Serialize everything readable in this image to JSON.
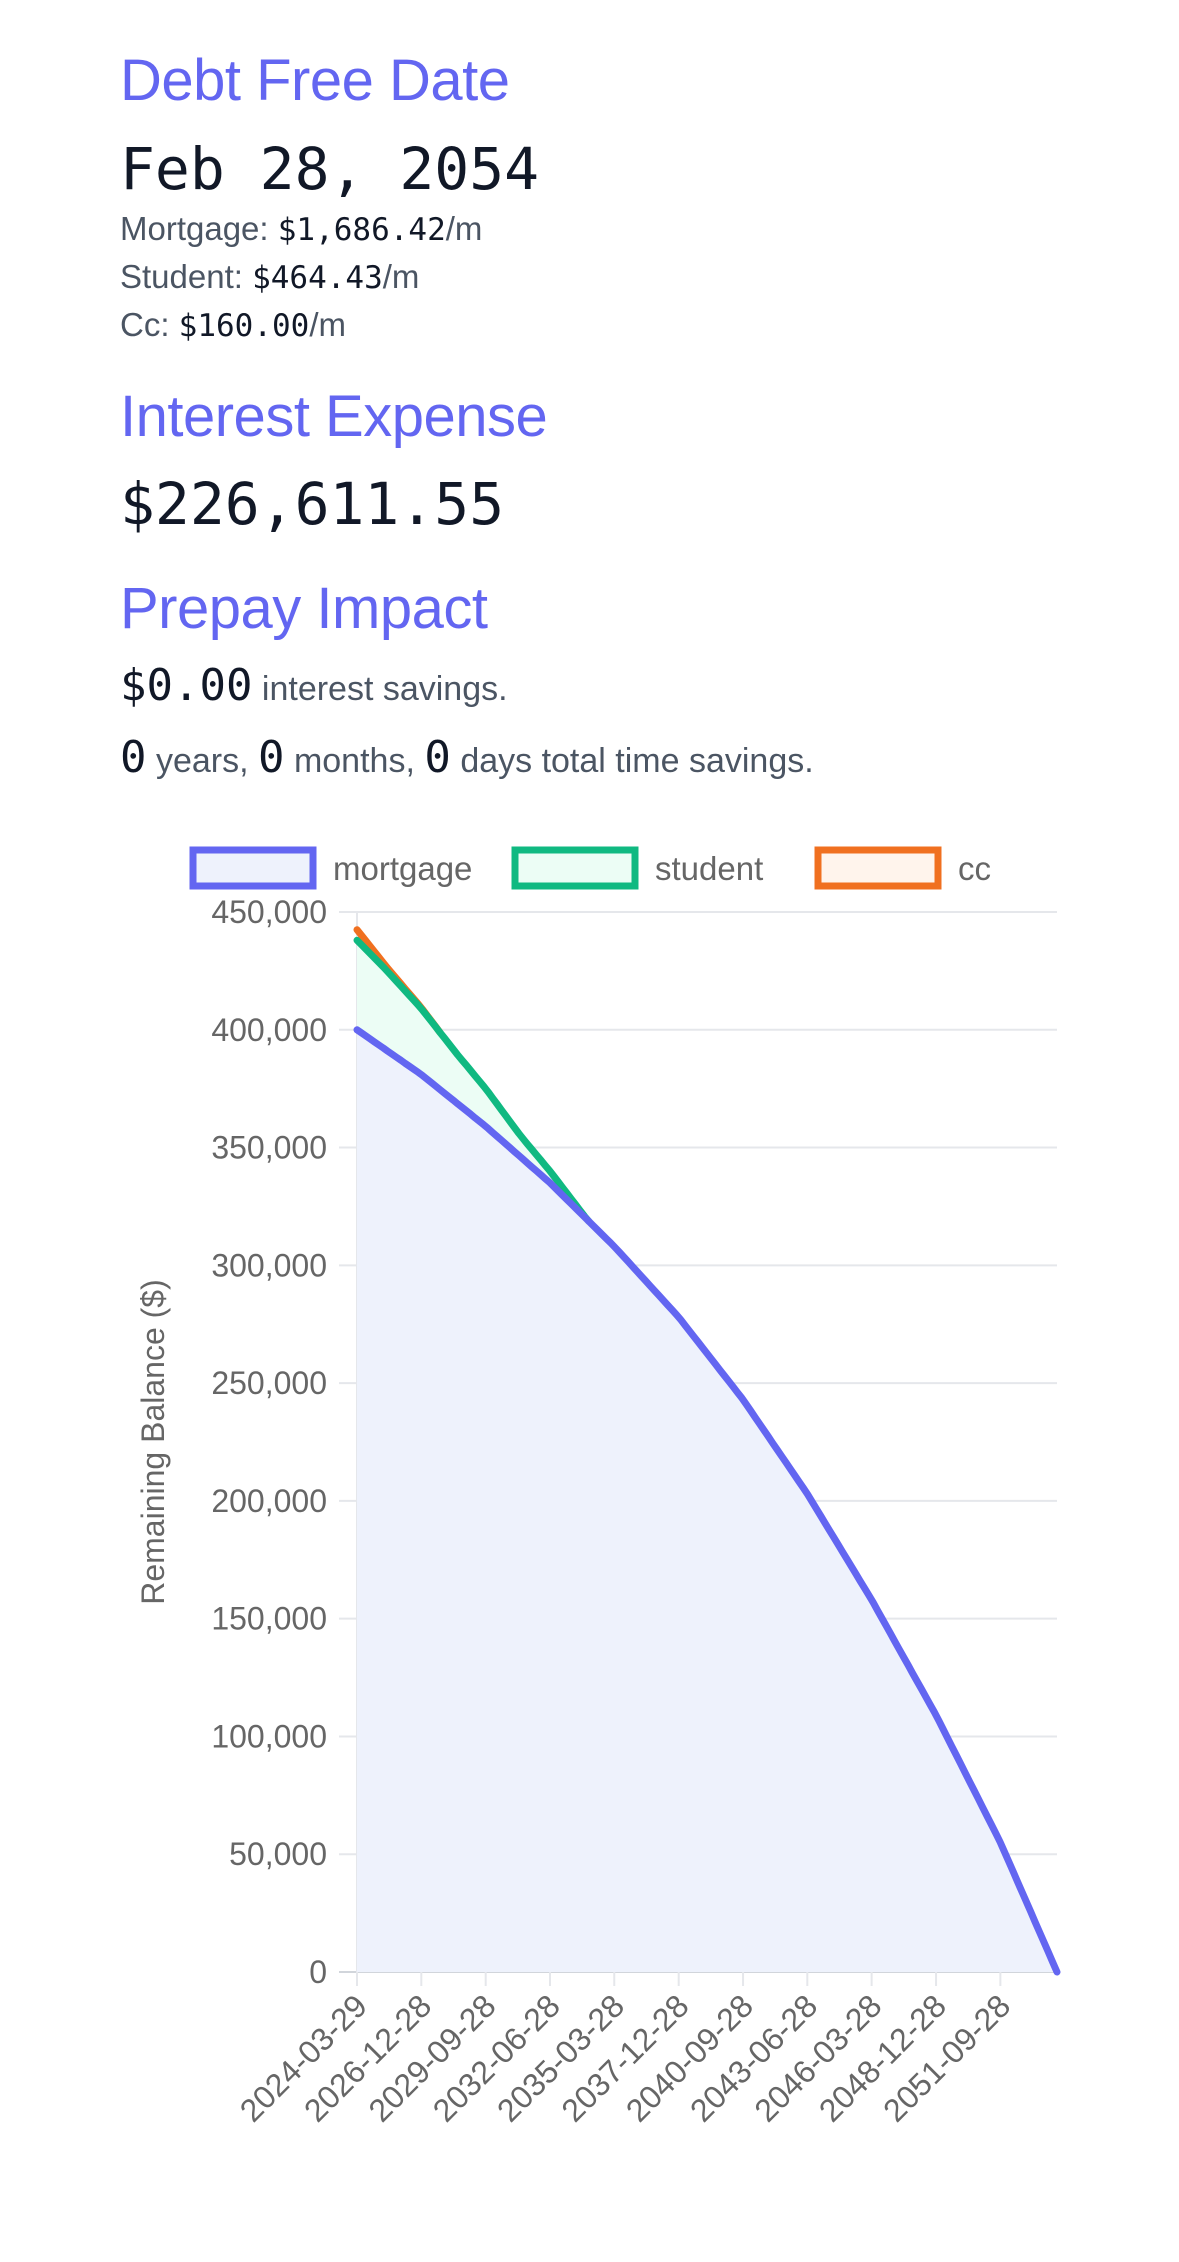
{
  "debt_free": {
    "title": "Debt Free Date",
    "date": "Feb 28, 2054",
    "payments": [
      {
        "label": "Mortgage:",
        "amount": "$1,686.42",
        "suffix": "/m"
      },
      {
        "label": "Student:",
        "amount": "$464.43",
        "suffix": "/m"
      },
      {
        "label": "Cc:",
        "amount": "$160.00",
        "suffix": "/m"
      }
    ]
  },
  "interest": {
    "title": "Interest Expense",
    "amount": "$226,611.55"
  },
  "prepay": {
    "title": "Prepay Impact",
    "savings_amount": "$0.00",
    "savings_text": "interest savings.",
    "years": "0",
    "years_label": "years,",
    "months": "0",
    "months_label": "months,",
    "days": "0",
    "days_label": "days total time savings."
  },
  "chart_data": {
    "type": "area",
    "ylabel": "Remaining Balance ($)",
    "ylim": [
      0,
      450000
    ],
    "yticks": [
      "0",
      "50,000",
      "100,000",
      "150,000",
      "200,000",
      "250,000",
      "300,000",
      "350,000",
      "400,000",
      "450,000"
    ],
    "xlim": [
      "2024-03-29",
      "2054-02-28"
    ],
    "xticks": [
      "2024-03-29",
      "2026-12-28",
      "2029-09-28",
      "2032-06-28",
      "2035-03-28",
      "2037-12-28",
      "2040-09-28",
      "2043-06-28",
      "2046-03-28",
      "2048-12-28",
      "2051-09-28"
    ],
    "grid": true,
    "stacked": true,
    "legend_position": "top",
    "series": [
      {
        "name": "mortgage",
        "color": "#6366f1",
        "fill": "#eef2fc",
        "points": [
          [
            "2024-03-29",
            400000
          ],
          [
            "2026-12-28",
            381000
          ],
          [
            "2029-09-28",
            359000
          ],
          [
            "2032-06-28",
            335000
          ],
          [
            "2035-03-28",
            308000
          ],
          [
            "2037-12-28",
            278000
          ],
          [
            "2040-09-28",
            243000
          ],
          [
            "2043-06-28",
            203000
          ],
          [
            "2046-03-28",
            158000
          ],
          [
            "2048-12-28",
            109000
          ],
          [
            "2051-09-28",
            55000
          ],
          [
            "2054-02-28",
            0
          ]
        ]
      },
      {
        "name": "student",
        "color": "#10b981",
        "fill": "#ecfdf5",
        "points": [
          [
            "2024-03-29",
            38000
          ],
          [
            "2025-06-28",
            34000
          ],
          [
            "2026-12-28",
            28000
          ],
          [
            "2028-06-28",
            21000
          ],
          [
            "2029-09-28",
            16000
          ],
          [
            "2031-03-28",
            9000
          ],
          [
            "2032-06-28",
            5000
          ],
          [
            "2034-01-28",
            0
          ]
        ]
      },
      {
        "name": "cc",
        "color": "#f07020",
        "fill": "#fff4ec",
        "points": [
          [
            "2024-03-29",
            4500
          ],
          [
            "2025-06-28",
            1500
          ],
          [
            "2026-12-28",
            400
          ],
          [
            "2027-09-28",
            0
          ]
        ]
      }
    ]
  }
}
